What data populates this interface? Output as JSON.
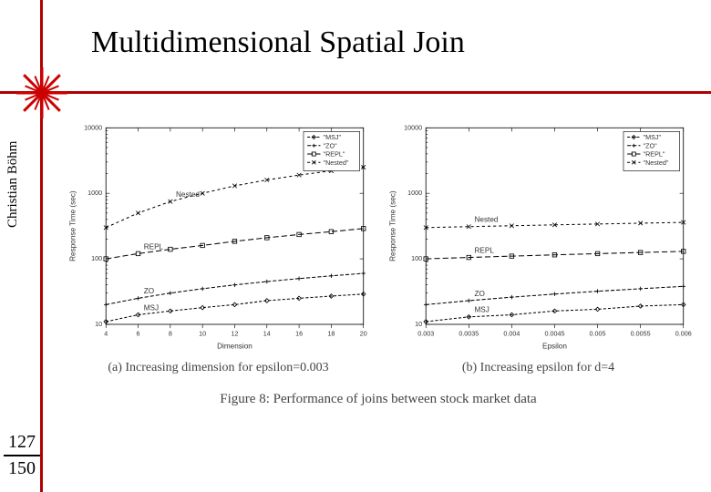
{
  "title": "Multidimensional Spatial Join",
  "author": "Christian Böhm",
  "page_current": "127",
  "page_total": "150",
  "accent_color": "#b20000",
  "figure_caption": "Figure 8: Performance of joins between stock market data",
  "chart_a": {
    "type": "line-log",
    "subcaption": "(a) Increasing dimension for epsilon=0.003",
    "xlabel": "Dimension",
    "ylabel": "Response Time (sec)",
    "xlim": [
      4,
      20
    ],
    "xtick_step": 2,
    "yticks": [
      10,
      100,
      1000,
      10000
    ],
    "ytick_labels": [
      "10",
      "100",
      "1000",
      "10000"
    ],
    "plot_bg": "#ffffff",
    "axis_color": "#000000",
    "text_color": "#333333",
    "legend": {
      "position": "top-right",
      "items": [
        {
          "label": "\"MSJ\"",
          "marker": "diamond",
          "dash": "3,2"
        },
        {
          "label": "\"ZO\"",
          "marker": "plus",
          "dash": "4,2"
        },
        {
          "label": "\"REPL\"",
          "marker": "square",
          "dash": "6,3"
        },
        {
          "label": "\"Nested\"",
          "marker": "x",
          "dash": "3,3"
        }
      ]
    },
    "series": [
      {
        "name": "MSJ",
        "marker": "diamond",
        "dash": "3,2",
        "data": [
          [
            4,
            11
          ],
          [
            6,
            14
          ],
          [
            8,
            16
          ],
          [
            10,
            18
          ],
          [
            12,
            20
          ],
          [
            14,
            23
          ],
          [
            16,
            25
          ],
          [
            18,
            27
          ],
          [
            20,
            29
          ]
        ],
        "inline_label_at": 1
      },
      {
        "name": "ZO",
        "marker": "plus",
        "dash": "4,2",
        "data": [
          [
            4,
            20
          ],
          [
            6,
            25
          ],
          [
            8,
            30
          ],
          [
            10,
            35
          ],
          [
            12,
            40
          ],
          [
            14,
            45
          ],
          [
            16,
            50
          ],
          [
            18,
            55
          ],
          [
            20,
            60
          ]
        ],
        "inline_label_at": 1
      },
      {
        "name": "REPL",
        "marker": "square",
        "dash": "6,3",
        "data": [
          [
            4,
            100
          ],
          [
            6,
            120
          ],
          [
            8,
            140
          ],
          [
            10,
            160
          ],
          [
            12,
            185
          ],
          [
            14,
            210
          ],
          [
            16,
            235
          ],
          [
            18,
            260
          ],
          [
            20,
            290
          ]
        ],
        "inline_label_at": 1
      },
      {
        "name": "Nested",
        "marker": "x",
        "dash": "3,3",
        "data": [
          [
            4,
            300
          ],
          [
            6,
            500
          ],
          [
            8,
            750
          ],
          [
            10,
            1000
          ],
          [
            12,
            1300
          ],
          [
            14,
            1600
          ],
          [
            16,
            1900
          ],
          [
            18,
            2200
          ],
          [
            20,
            2500
          ]
        ],
        "inline_label_at": 2
      }
    ]
  },
  "chart_b": {
    "type": "line-log",
    "subcaption": "(b) Increasing epsilon for d=4",
    "xlabel": "Epsilon",
    "ylabel": "Response Time (sec)",
    "xlim": [
      0.003,
      0.006
    ],
    "xtick_step": 0.0005,
    "xtick_labels": [
      "0.003",
      "0.0035",
      "0.004",
      "0.0045",
      "0.005",
      "0.0055",
      "0.006"
    ],
    "yticks": [
      10,
      100,
      1000,
      10000
    ],
    "ytick_labels": [
      "10",
      "100",
      "1000",
      "10000"
    ],
    "plot_bg": "#ffffff",
    "axis_color": "#000000",
    "text_color": "#333333",
    "legend": {
      "position": "top-right",
      "items": [
        {
          "label": "\"MSJ\"",
          "marker": "diamond",
          "dash": "3,2"
        },
        {
          "label": "\"ZO\"",
          "marker": "plus",
          "dash": "4,2"
        },
        {
          "label": "\"REPL\"",
          "marker": "square",
          "dash": "6,3"
        },
        {
          "label": "\"Nested\"",
          "marker": "x",
          "dash": "3,3"
        }
      ]
    },
    "series": [
      {
        "name": "MSJ",
        "marker": "diamond",
        "dash": "3,2",
        "data": [
          [
            0.003,
            11
          ],
          [
            0.0035,
            13
          ],
          [
            0.004,
            14
          ],
          [
            0.0045,
            16
          ],
          [
            0.005,
            17
          ],
          [
            0.0055,
            19
          ],
          [
            0.006,
            20
          ]
        ],
        "inline_label_at": 1
      },
      {
        "name": "ZO",
        "marker": "plus",
        "dash": "4,2",
        "data": [
          [
            0.003,
            20
          ],
          [
            0.0035,
            23
          ],
          [
            0.004,
            26
          ],
          [
            0.0045,
            29
          ],
          [
            0.005,
            32
          ],
          [
            0.0055,
            35
          ],
          [
            0.006,
            38
          ]
        ],
        "inline_label_at": 1
      },
      {
        "name": "REPL",
        "marker": "square",
        "dash": "6,3",
        "data": [
          [
            0.003,
            100
          ],
          [
            0.0035,
            105
          ],
          [
            0.004,
            110
          ],
          [
            0.0045,
            115
          ],
          [
            0.005,
            120
          ],
          [
            0.0055,
            125
          ],
          [
            0.006,
            130
          ]
        ],
        "inline_label_at": 1
      },
      {
        "name": "Nested",
        "marker": "x",
        "dash": "3,3",
        "data": [
          [
            0.003,
            300
          ],
          [
            0.0035,
            310
          ],
          [
            0.004,
            320
          ],
          [
            0.0045,
            330
          ],
          [
            0.005,
            340
          ],
          [
            0.0055,
            350
          ],
          [
            0.006,
            360
          ]
        ],
        "inline_label_at": 1
      }
    ]
  }
}
